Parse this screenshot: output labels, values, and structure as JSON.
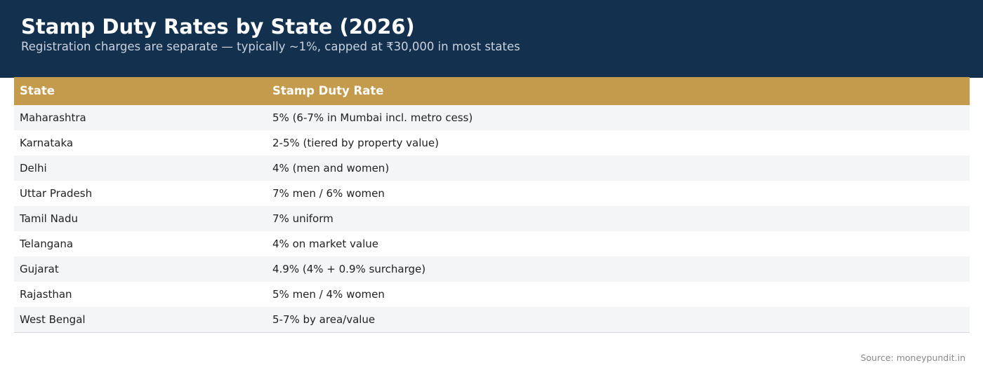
{
  "header": {
    "title": "Stamp Duty Rates by State (2026)",
    "subtitle": "Registration charges are separate — typically ~1%, capped at ₹30,000 in most states"
  },
  "table": {
    "columns": [
      "State",
      "Stamp Duty Rate"
    ],
    "rows": [
      {
        "state": "Maharashtra",
        "rate": "5% (6-7% in Mumbai incl. metro cess)"
      },
      {
        "state": "Karnataka",
        "rate": "2-5% (tiered by property value)"
      },
      {
        "state": "Delhi",
        "rate": "4% (men and women)"
      },
      {
        "state": "Uttar Pradesh",
        "rate": "7% men / 6% women"
      },
      {
        "state": "Tamil Nadu",
        "rate": "7% uniform"
      },
      {
        "state": "Telangana",
        "rate": "4% on market value"
      },
      {
        "state": "Gujarat",
        "rate": "4.9% (4% + 0.9% surcharge)"
      },
      {
        "state": "Rajasthan",
        "rate": "5% men / 4% women"
      },
      {
        "state": "West Bengal",
        "rate": "5-7% by area/value"
      }
    ]
  },
  "footer": {
    "source": "Source: moneypundit.in"
  },
  "colors": {
    "header_bg": "#14304f",
    "table_header_bg": "#c49a4c",
    "row_alt_bg": "#f4f5f7"
  }
}
